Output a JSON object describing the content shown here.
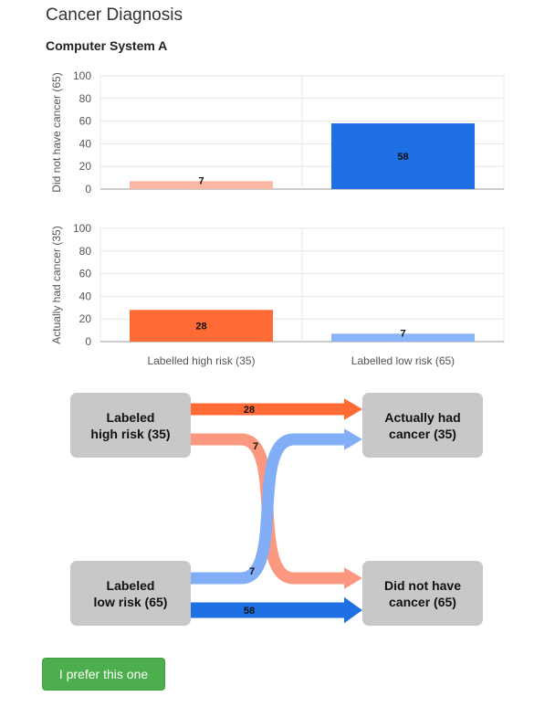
{
  "page": {
    "title": "Cancer Diagnosis",
    "subtitle": "Computer System A"
  },
  "chart_data": {
    "type": "bar",
    "categories": [
      "Labelled high risk (35)",
      "Labelled low risk (65)"
    ],
    "ylim": [
      0,
      100
    ],
    "yticks": [
      0,
      20,
      40,
      60,
      80,
      100
    ],
    "grid": true,
    "panels": [
      {
        "ylabel": "Did not have cancer (65)",
        "values": [
          7,
          58
        ],
        "colors": [
          "#f9b7a4",
          "#1f6fe5"
        ]
      },
      {
        "ylabel": "Actually had cancer (35)",
        "values": [
          28,
          7
        ],
        "colors": [
          "#ff6a35",
          "#8ab4f8"
        ]
      }
    ]
  },
  "flow": {
    "sources": [
      {
        "line1": "Labeled",
        "line2": "high risk (35)"
      },
      {
        "line1": "Labeled",
        "line2": "low risk (65)"
      }
    ],
    "targets": [
      {
        "line1": "Actually had",
        "line2": "cancer (35)"
      },
      {
        "line1": "Did not have",
        "line2": "cancer (65)"
      }
    ],
    "links": [
      {
        "from": 0,
        "to": 0,
        "value": 28,
        "color": "#ff6a35"
      },
      {
        "from": 0,
        "to": 1,
        "value": 7,
        "color": "#fc9880"
      },
      {
        "from": 1,
        "to": 0,
        "value": 7,
        "color": "#82adf7"
      },
      {
        "from": 1,
        "to": 1,
        "value": 58,
        "color": "#1f6fe5"
      }
    ]
  },
  "button": {
    "label": "I prefer this one",
    "color": "#4cae4c"
  }
}
